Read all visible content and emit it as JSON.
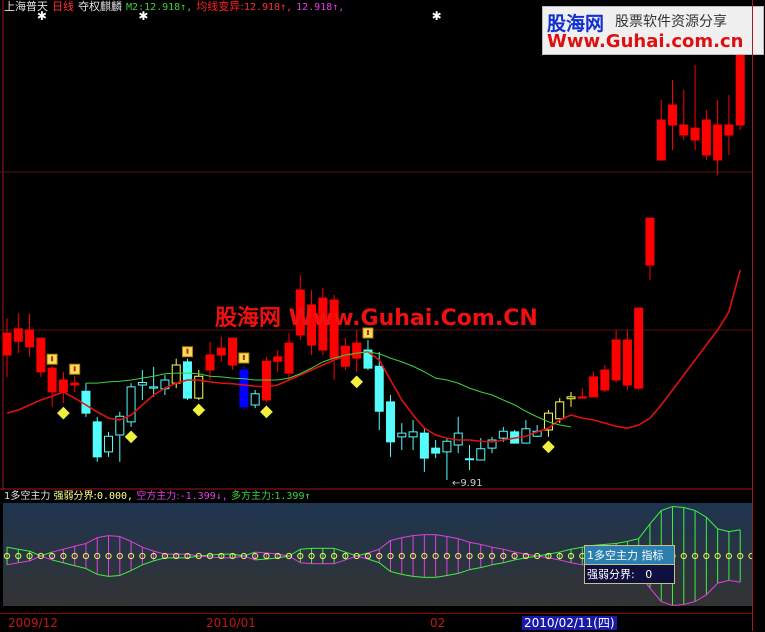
{
  "header": {
    "stock_name": "上海普天",
    "period": "日线",
    "adjust": "夺权麒麟",
    "m2_label": "M2:",
    "m2_value": "12.918↑,",
    "ma_var_label": "均线变异:",
    "ma_var_value": "12.918↑,",
    "third_value": "12.918↑,"
  },
  "indicator": {
    "name": "1多空主力",
    "boundary_label": "强弱分界:",
    "boundary_value": "0.000,",
    "bear_label": "空方主力:",
    "bear_value": "-1.399↓,",
    "bull_label": "多方主力:",
    "bull_value": "1.399↑"
  },
  "tooltip": {
    "title": "1多空主力 指标",
    "label": "强弱分界:",
    "value": "0"
  },
  "axis": {
    "labels": [
      "2009/12",
      "2010/01",
      "02"
    ],
    "selected_date": "2010/02/11(四)"
  },
  "low_marker": "9.91",
  "watermarks": {
    "logo_cn": "股海网",
    "logo_slogan": "股票软件资源分享",
    "logo_url": "Www.Guhai.com.cn",
    "center": "股海网 Www.Guhai.Com.CN"
  },
  "colors": {
    "up": "#ff0000",
    "down": "#54fcfc",
    "yellow": "#ffff54",
    "blue": "#0000ff",
    "bull": "#40f040",
    "bear": "#e040e0",
    "ma": "#e01010",
    "ma2": "#40d040"
  },
  "chart_data": [
    {
      "type": "candlestick",
      "ylim": [
        9.75,
        17.59
      ],
      "candles_ohlc_style": [
        [
          11.91,
          12.5,
          11.56,
          12.26,
          "r"
        ],
        [
          12.13,
          12.58,
          11.94,
          12.33,
          "r"
        ],
        [
          12.04,
          12.57,
          11.88,
          12.31,
          "r"
        ],
        [
          11.64,
          12.18,
          11.56,
          12.18,
          "r"
        ],
        [
          11.32,
          11.73,
          11.08,
          11.7,
          "r"
        ],
        [
          11.32,
          11.64,
          11.14,
          11.51,
          "r"
        ],
        [
          11.43,
          11.57,
          11.32,
          11.46,
          "r"
        ],
        [
          11.33,
          11.46,
          10.92,
          10.98,
          "c"
        ],
        [
          10.84,
          10.92,
          10.2,
          10.28,
          "c"
        ],
        [
          10.36,
          10.68,
          10.28,
          10.61,
          "ch"
        ],
        [
          10.63,
          11.0,
          10.2,
          10.93,
          "ch"
        ],
        [
          10.84,
          11.46,
          10.76,
          11.4,
          "ch"
        ],
        [
          11.43,
          11.67,
          11.19,
          11.47,
          "ch"
        ],
        [
          11.38,
          11.72,
          11.24,
          11.4,
          "ch"
        ],
        [
          11.37,
          11.59,
          11.27,
          11.51,
          "ch"
        ],
        [
          11.46,
          11.85,
          11.38,
          11.75,
          "y"
        ],
        [
          11.8,
          11.85,
          11.19,
          11.22,
          "c"
        ],
        [
          11.22,
          11.67,
          11.19,
          11.57,
          "y"
        ],
        [
          11.67,
          12.12,
          11.51,
          11.91,
          "r"
        ],
        [
          11.91,
          12.2,
          11.8,
          12.02,
          "r"
        ],
        [
          11.75,
          12.18,
          11.67,
          12.18,
          "r"
        ],
        [
          11.67,
          11.75,
          11.03,
          11.08,
          "b"
        ],
        [
          11.11,
          11.35,
          11.06,
          11.29,
          "ch"
        ],
        [
          11.19,
          11.88,
          11.16,
          11.81,
          "r"
        ],
        [
          11.81,
          11.99,
          11.64,
          11.88,
          "r"
        ],
        [
          11.62,
          12.26,
          11.51,
          12.1,
          "r"
        ],
        [
          12.23,
          13.19,
          12.15,
          12.95,
          "r"
        ],
        [
          12.07,
          12.95,
          11.91,
          12.71,
          "r"
        ],
        [
          11.99,
          12.98,
          11.91,
          12.82,
          "r"
        ],
        [
          11.86,
          12.87,
          11.51,
          12.79,
          "r"
        ],
        [
          11.73,
          12.18,
          11.67,
          12.05,
          "r"
        ],
        [
          11.86,
          12.31,
          11.64,
          12.1,
          "r"
        ],
        [
          11.99,
          12.15,
          11.67,
          11.7,
          "c"
        ],
        [
          11.73,
          11.96,
          10.71,
          11.01,
          "c"
        ],
        [
          11.16,
          11.27,
          10.28,
          10.52,
          "c"
        ],
        [
          10.6,
          10.82,
          10.39,
          10.66,
          "ch"
        ],
        [
          10.6,
          10.87,
          10.39,
          10.68,
          "ch"
        ],
        [
          10.66,
          10.74,
          10.04,
          10.26,
          "c"
        ],
        [
          10.42,
          10.55,
          10.26,
          10.34,
          "c"
        ],
        [
          10.36,
          10.58,
          9.91,
          10.53,
          "ch"
        ],
        [
          10.47,
          10.92,
          10.34,
          10.66,
          "ch"
        ],
        [
          10.25,
          10.47,
          10.07,
          10.25,
          "ch"
        ],
        [
          10.23,
          10.58,
          10.23,
          10.41,
          "ch"
        ],
        [
          10.42,
          10.6,
          10.34,
          10.55,
          "ch"
        ],
        [
          10.58,
          10.76,
          10.52,
          10.69,
          "ch"
        ],
        [
          10.68,
          10.71,
          10.5,
          10.5,
          "c"
        ],
        [
          10.5,
          10.87,
          10.5,
          10.73,
          "ch"
        ],
        [
          10.61,
          10.79,
          10.6,
          10.69,
          "ch"
        ],
        [
          10.71,
          11.03,
          10.6,
          10.98,
          "y"
        ],
        [
          10.89,
          11.22,
          10.82,
          11.16,
          "y"
        ],
        [
          11.21,
          11.32,
          11.08,
          11.24,
          "y"
        ],
        [
          11.22,
          11.38,
          11.22,
          11.24,
          "r"
        ],
        [
          11.24,
          11.64,
          11.24,
          11.56,
          "r"
        ],
        [
          11.35,
          11.75,
          11.32,
          11.67,
          "r"
        ],
        [
          11.51,
          12.31,
          11.47,
          12.15,
          "r"
        ],
        [
          11.43,
          12.31,
          11.35,
          12.15,
          "r"
        ],
        [
          11.38,
          12.66,
          11.35,
          12.66,
          "r"
        ],
        [
          13.35,
          14.1,
          13.11,
          14.1,
          "r"
        ],
        [
          15.03,
          15.99,
          15.03,
          15.67,
          "r"
        ],
        [
          15.59,
          16.31,
          15.19,
          15.91,
          "r"
        ],
        [
          15.43,
          16.15,
          15.35,
          15.59,
          "r"
        ],
        [
          15.35,
          16.55,
          15.19,
          15.54,
          "r"
        ],
        [
          15.11,
          15.83,
          15.03,
          15.67,
          "r"
        ],
        [
          15.03,
          15.99,
          14.79,
          15.59,
          "r"
        ],
        [
          15.43,
          16.07,
          15.11,
          15.59,
          "r"
        ],
        [
          15.59,
          17.11,
          15.51,
          16.71,
          "r"
        ]
      ],
      "red_line": [
        10.98,
        11.03,
        11.11,
        11.19,
        11.25,
        11.32,
        11.22,
        11.11,
        11.0,
        10.9,
        10.87,
        10.95,
        11.11,
        11.27,
        11.38,
        11.46,
        11.51,
        11.51,
        11.48,
        11.46,
        11.45,
        11.43,
        11.41,
        11.4,
        11.43,
        11.51,
        11.59,
        11.67,
        11.75,
        11.83,
        11.89,
        11.94,
        11.96,
        11.83,
        11.51,
        11.19,
        10.95,
        10.74,
        10.63,
        10.58,
        10.55,
        10.55,
        10.53,
        10.52,
        10.55,
        10.58,
        10.61,
        10.68,
        10.74,
        10.87,
        10.95,
        10.9,
        10.87,
        10.82,
        10.77,
        10.74,
        10.79,
        10.9,
        11.11,
        11.35,
        11.59,
        11.83,
        12.07,
        12.31,
        12.6,
        13.27
      ],
      "green_line_start_index": 7,
      "green_line": [
        11.46,
        11.46,
        11.48,
        11.49,
        11.51,
        11.54,
        11.57,
        11.61,
        11.62,
        11.62,
        11.61,
        11.57,
        11.56,
        11.54,
        11.53,
        11.51,
        11.51,
        11.51,
        11.54,
        11.61,
        11.7,
        11.8,
        11.86,
        11.91,
        11.94,
        11.96,
        11.93,
        11.86,
        11.8,
        11.73,
        11.64,
        11.54,
        11.51,
        11.46,
        11.38,
        11.32,
        11.27,
        11.19,
        11.11,
        11.01,
        10.92,
        10.84,
        10.79,
        10.76
      ],
      "flag_marker_indices": [
        4,
        6,
        16,
        21,
        32
      ],
      "diamond_marker_indices": [
        5,
        11,
        17,
        23,
        31,
        48
      ],
      "star_marker_indices": [
        3,
        12,
        38
      ]
    },
    {
      "type": "indicator-band",
      "ylim": [
        -2.75,
        2.75
      ],
      "values": [
        0.47,
        0.36,
        0.26,
        0,
        -0.21,
        -0.36,
        -0.52,
        -0.67,
        -0.98,
        -1.09,
        -1.04,
        -0.78,
        -0.47,
        -0.26,
        -0.1,
        -0.1,
        -0.1,
        0,
        0.05,
        0.1,
        0.1,
        0,
        -0.21,
        -0.16,
        -0.1,
        0,
        0.36,
        0.41,
        0.41,
        0.41,
        0.21,
        0,
        -0.16,
        -0.36,
        -0.83,
        -0.98,
        -1.09,
        -1.14,
        -1.14,
        -1.04,
        -0.93,
        -0.73,
        -0.62,
        -0.47,
        -0.36,
        -0.21,
        -0.1,
        0,
        0.1,
        0.21,
        0.36,
        0.47,
        0.57,
        0.62,
        0.67,
        0.78,
        0.93,
        1.71,
        2.43,
        2.64,
        2.59,
        2.43,
        2.07,
        1.45,
        1.3,
        1.399
      ]
    }
  ]
}
